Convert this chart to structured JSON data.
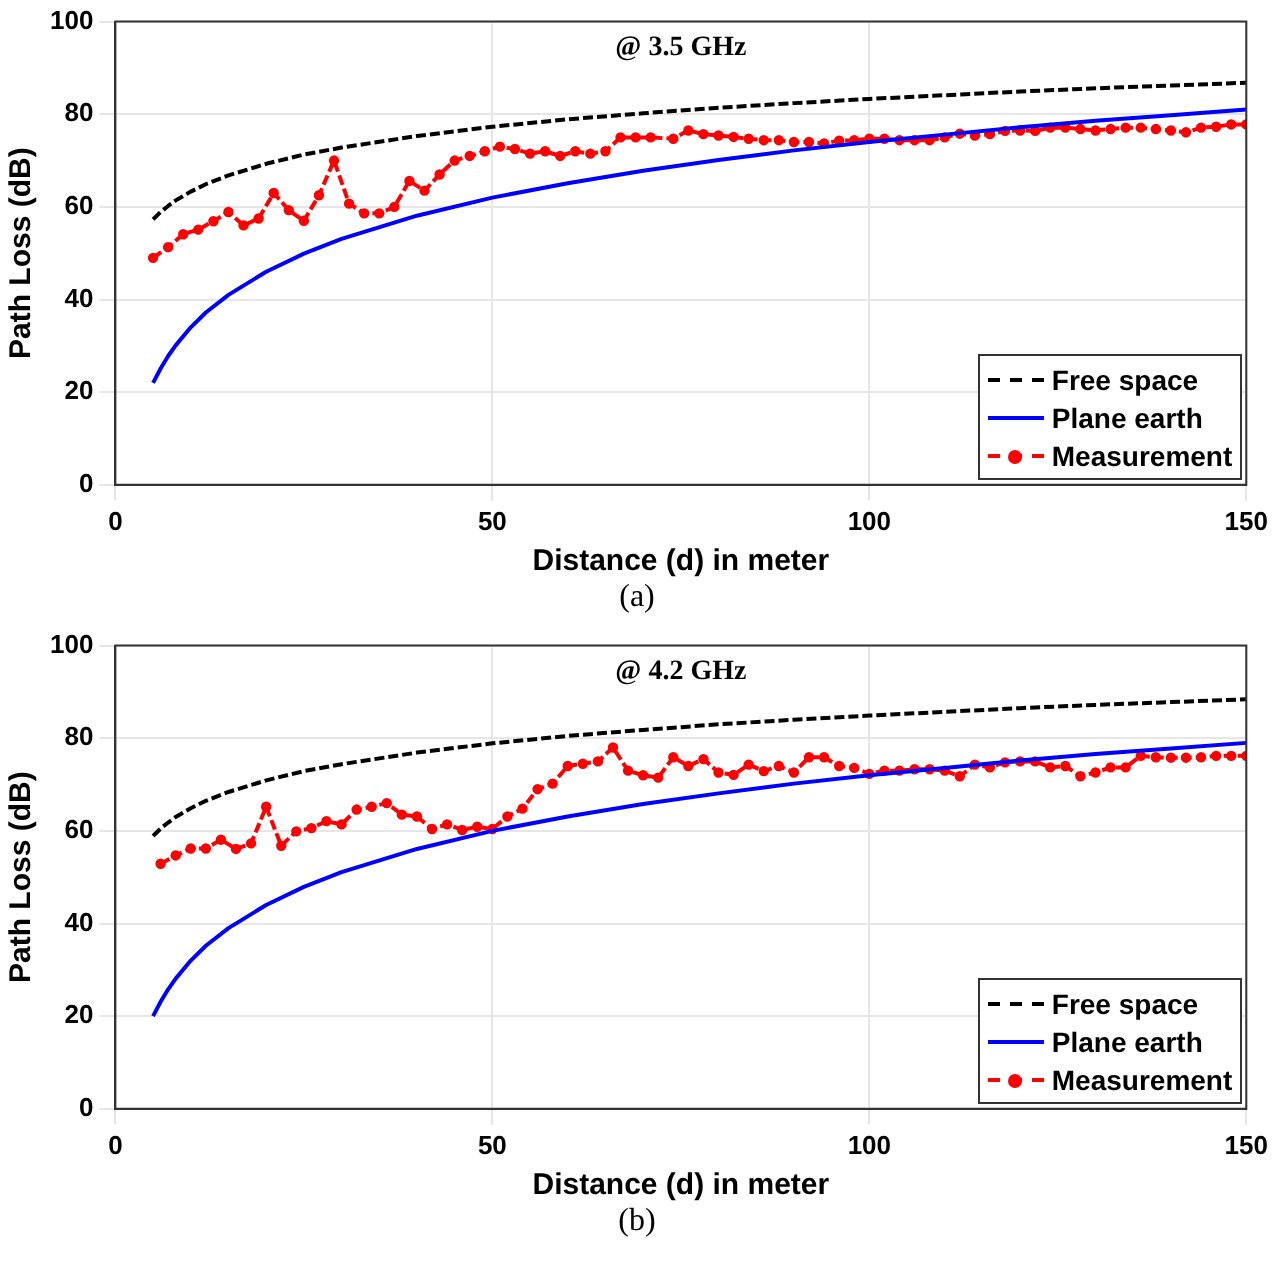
{
  "chart_data": [
    {
      "type": "line",
      "annotations": [
        "@ 3.5 GHz",
        "(a)"
      ],
      "xlabel": "Distance (d) in meter",
      "ylabel": "Path Loss (dB)",
      "xlim": [
        0,
        150
      ],
      "xticks": [
        0,
        50,
        100,
        150
      ],
      "ylim": [
        0,
        100
      ],
      "yticks": [
        0,
        20,
        40,
        60,
        80,
        100
      ],
      "grid": true,
      "legend": "bottom right",
      "series": [
        {
          "name": "Free space",
          "color": "#000000",
          "line_style": "dashed",
          "marker": "none",
          "x": [
            5,
            6,
            7,
            8,
            10,
            12,
            15,
            20,
            25,
            30,
            40,
            50,
            60,
            70,
            80,
            90,
            100,
            110,
            120,
            130,
            140,
            150
          ],
          "values": [
            57.3,
            58.9,
            60.2,
            61.4,
            63.3,
            64.9,
            66.8,
            69.3,
            71.3,
            72.8,
            75.3,
            77.3,
            78.9,
            80.2,
            81.4,
            82.4,
            83.3,
            84.1,
            84.9,
            85.6,
            86.2,
            86.8
          ]
        },
        {
          "name": "Plane earth",
          "color": "#0000ff",
          "line_style": "solid",
          "marker": "none",
          "x": [
            5,
            6,
            7,
            8,
            10,
            12,
            15,
            20,
            25,
            30,
            40,
            50,
            60,
            70,
            80,
            90,
            100,
            110,
            120,
            130,
            140,
            150
          ],
          "values": [
            22.0,
            25.1,
            27.8,
            30.1,
            34.0,
            37.2,
            41.0,
            46.0,
            49.9,
            53.1,
            58.1,
            62.0,
            65.1,
            67.8,
            70.1,
            72.2,
            74.0,
            75.6,
            77.2,
            78.6,
            79.8,
            81.0
          ]
        },
        {
          "name": "Measurement",
          "color": "#ff0000",
          "line_style": "dashed",
          "marker": "circle",
          "x": [
            5,
            7,
            9,
            11,
            13,
            15,
            17,
            19,
            21,
            23,
            25,
            27,
            29,
            31,
            33,
            35,
            37,
            39,
            41,
            43,
            45,
            47,
            49,
            51,
            53,
            55,
            57,
            59,
            61,
            63,
            65,
            67,
            69,
            71,
            74,
            76,
            78,
            80,
            82,
            84,
            86,
            88,
            90,
            92,
            94,
            96,
            98,
            100,
            102,
            104,
            106,
            108,
            110,
            112,
            114,
            116,
            118,
            120,
            122,
            124,
            126,
            128,
            130,
            132,
            134,
            136,
            138,
            140,
            142,
            144,
            146,
            148,
            150
          ],
          "values": [
            49,
            51.3,
            54.1,
            55.1,
            56.9,
            58.9,
            56,
            57.5,
            63,
            59.3,
            57,
            62.5,
            70,
            60.7,
            58.6,
            58.6,
            60,
            65.6,
            63.5,
            67,
            70,
            71,
            72,
            73,
            72.5,
            71.5,
            72,
            71,
            72,
            71.5,
            72,
            75,
            75,
            75,
            74.7,
            76.5,
            75.7,
            75.4,
            75.1,
            74.7,
            74.4,
            74.4,
            74.0,
            74.0,
            73.7,
            74.3,
            74.4,
            74.7,
            74.7,
            74.4,
            74.4,
            74.4,
            75.0,
            75.8,
            75.4,
            75.7,
            76.4,
            76.5,
            76.4,
            77.1,
            77.1,
            76.8,
            76.5,
            76.8,
            77.1,
            77.1,
            76.8,
            76.5,
            76.1,
            77.1,
            77.3,
            77.8,
            77.8
          ]
        }
      ]
    },
    {
      "type": "line",
      "annotations": [
        "@ 4.2 GHz",
        "(b)"
      ],
      "xlabel": "Distance (d) in meter",
      "ylabel": "Path Loss (dB)",
      "xlim": [
        0,
        150
      ],
      "xticks": [
        0,
        50,
        100,
        150
      ],
      "ylim": [
        0,
        100
      ],
      "yticks": [
        0,
        20,
        40,
        60,
        80,
        100
      ],
      "grid": true,
      "legend": "bottom right",
      "series": [
        {
          "name": "Free space",
          "color": "#000000",
          "line_style": "dashed",
          "marker": "none",
          "x": [
            5,
            6,
            7,
            8,
            10,
            12,
            15,
            20,
            25,
            30,
            40,
            50,
            60,
            70,
            80,
            90,
            100,
            110,
            120,
            130,
            140,
            150
          ],
          "values": [
            58.9,
            60.5,
            61.8,
            63.0,
            64.9,
            66.5,
            68.4,
            70.9,
            72.9,
            74.4,
            76.9,
            78.9,
            80.5,
            81.8,
            83.0,
            84.0,
            84.9,
            85.7,
            86.5,
            87.2,
            87.8,
            88.4
          ]
        },
        {
          "name": "Plane earth",
          "color": "#0000ff",
          "line_style": "solid",
          "marker": "none",
          "x": [
            5,
            6,
            7,
            8,
            10,
            12,
            15,
            20,
            25,
            30,
            40,
            50,
            60,
            70,
            80,
            90,
            100,
            110,
            120,
            130,
            140,
            150
          ],
          "values": [
            20.0,
            23.1,
            25.8,
            28.1,
            32.0,
            35.2,
            39.0,
            44.0,
            47.9,
            51.1,
            56.1,
            60.0,
            63.1,
            65.8,
            68.1,
            70.2,
            72.0,
            73.6,
            75.2,
            76.6,
            77.8,
            79.0
          ]
        },
        {
          "name": "Measurement",
          "color": "#ff0000",
          "line_style": "dashed",
          "marker": "circle",
          "x": [
            6,
            8,
            10,
            12,
            14,
            16,
            18,
            20,
            22,
            24,
            26,
            28,
            30,
            32,
            34,
            36,
            38,
            40,
            42,
            44,
            46,
            48,
            50,
            52,
            54,
            56,
            58,
            60,
            62,
            64,
            66,
            68,
            70,
            72,
            74,
            76,
            78,
            80,
            82,
            84,
            86,
            88,
            90,
            92,
            94,
            96,
            98,
            100,
            102,
            104,
            106,
            108,
            110,
            112,
            114,
            116,
            118,
            120,
            122,
            124,
            126,
            128,
            130,
            132,
            134,
            136,
            138,
            140,
            142,
            144,
            146,
            148,
            150
          ],
          "values": [
            52.9,
            54.7,
            56.2,
            56.2,
            58.1,
            56.1,
            57.3,
            65.2,
            56.8,
            59.9,
            60.6,
            62.1,
            61.4,
            64.6,
            65.2,
            66.0,
            63.5,
            63.1,
            60.4,
            61.4,
            60.2,
            60.9,
            60.4,
            63.1,
            64.8,
            69,
            70.2,
            74,
            74.5,
            75,
            78,
            73,
            72,
            71.5,
            75.9,
            74.0,
            75.5,
            72.6,
            72.1,
            74.3,
            72.9,
            74.0,
            72.6,
            75.9,
            75.9,
            74.0,
            73.6,
            72.3,
            73.0,
            73.0,
            73.3,
            73.3,
            73.0,
            71.8,
            74.3,
            73.7,
            74.8,
            75.0,
            75.0,
            73.7,
            74.0,
            71.8,
            72.6,
            73.7,
            73.7,
            76.2,
            75.9,
            75.8,
            75.8,
            75.9,
            76.2,
            76.2,
            76.2
          ]
        }
      ]
    }
  ]
}
